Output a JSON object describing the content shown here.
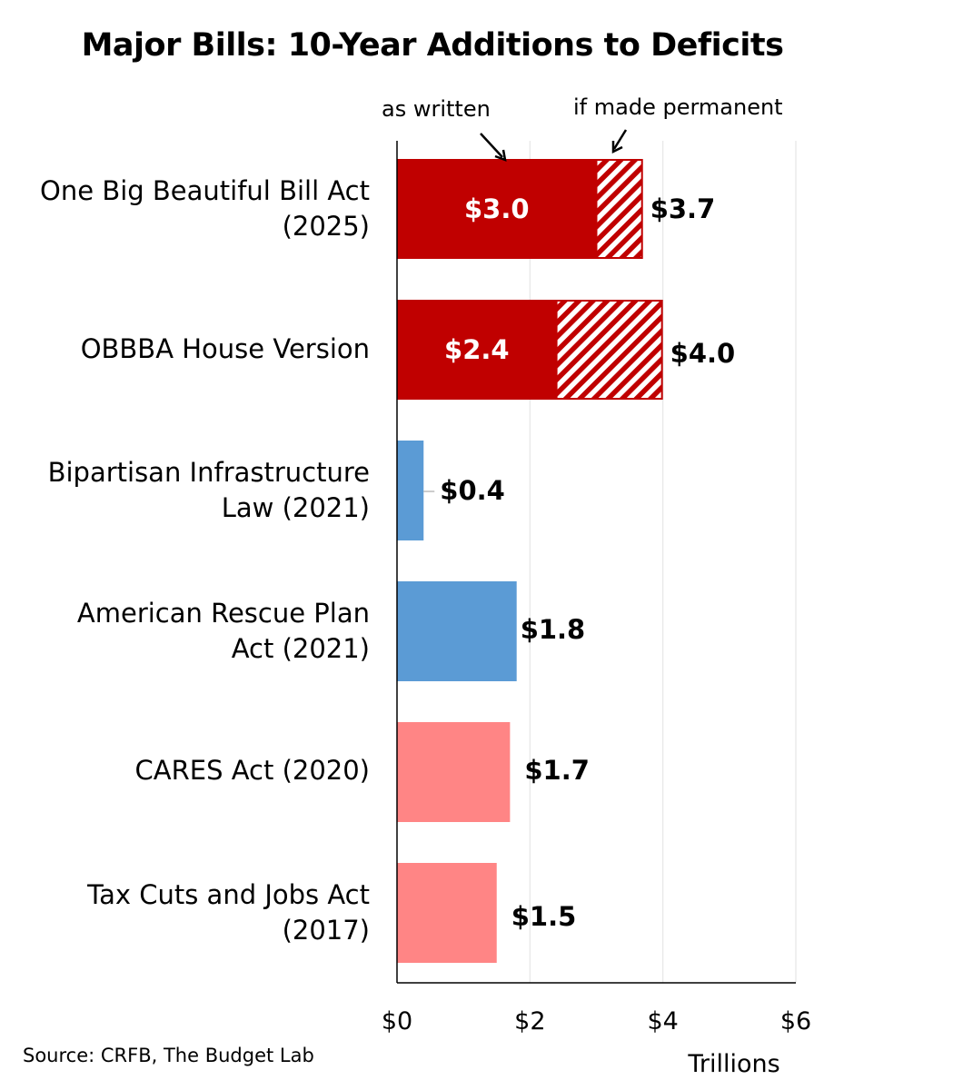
{
  "chart_data": {
    "type": "bar",
    "orientation": "horizontal",
    "title": "Major Bills: 10-Year Additions to Deficits",
    "xlabel": "Trillions",
    "xlim": [
      0,
      6
    ],
    "xticks": [
      "$0",
      "$2",
      "$4",
      "$6"
    ],
    "xtick_values": [
      0,
      2,
      4,
      6
    ],
    "categories": [
      "One Big Beautiful Bill Act\n(2025)",
      "OBBBA House Version",
      "Bipartisan Infrastructure\nLaw (2021)",
      "American Rescue Plan\nAct (2021)",
      "CARES Act (2020)",
      "Tax Cuts and Jobs Act\n(2017)"
    ],
    "series": [
      {
        "name": "as written",
        "values": [
          3.0,
          2.4,
          0.4,
          1.8,
          1.7,
          1.5
        ],
        "colors": [
          "#c00000",
          "#c00000",
          "#5b9bd5",
          "#5b9bd5",
          "#ff8585",
          "#ff8585"
        ],
        "labels": [
          "$3.0",
          "$2.4",
          "",
          "",
          "",
          ""
        ]
      },
      {
        "name": "if made permanent",
        "values": [
          0.7,
          1.6,
          0,
          0,
          0,
          0
        ],
        "pattern": "hatched",
        "color": "#c00000"
      }
    ],
    "totals": [
      "$3.7",
      "$4.0",
      "$0.4",
      "$1.8",
      "$1.7",
      "$1.5"
    ],
    "annotations": [
      "as written",
      "if made permanent"
    ],
    "source": "Source: CRFB, The Budget Lab"
  }
}
